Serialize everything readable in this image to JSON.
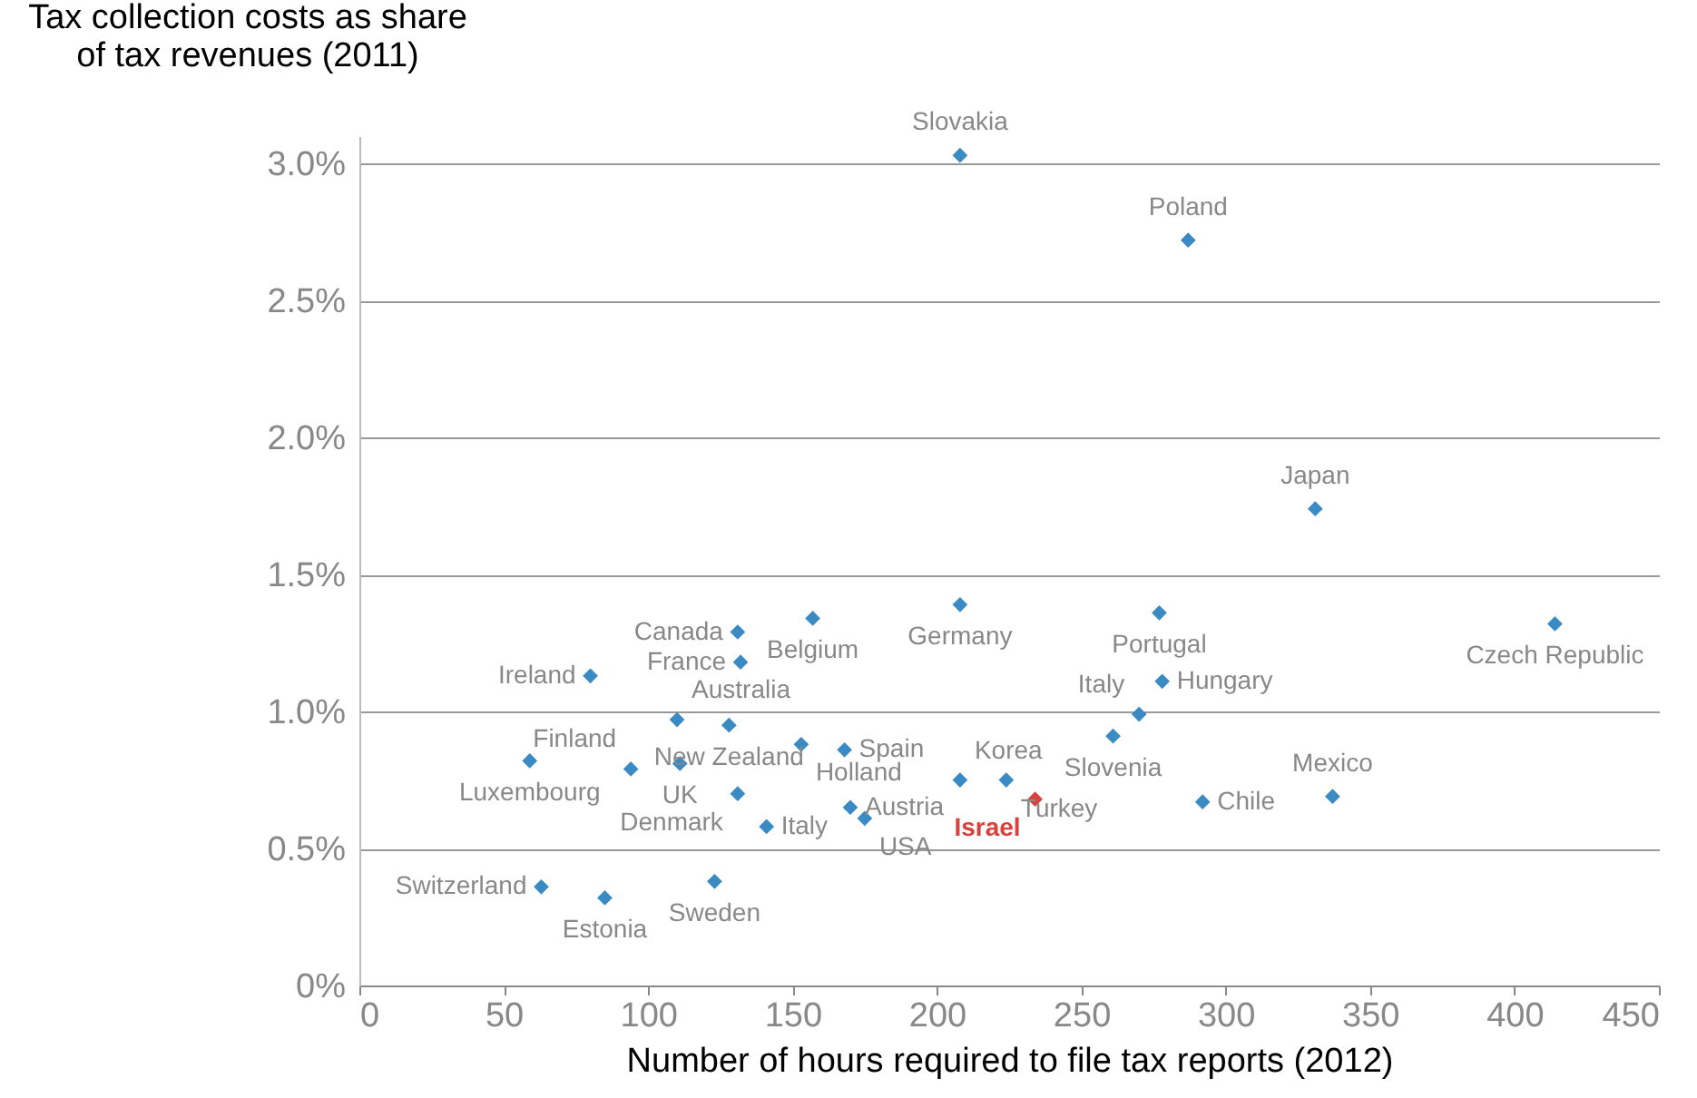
{
  "chart_data": {
    "type": "scatter",
    "xlabel": "Number of hours required to file tax reports (2012)",
    "ylabel": "Tax collection costs as share\nof tax revenues (2011)",
    "xlim": [
      0,
      450
    ],
    "xticks": [
      0,
      50,
      100,
      150,
      200,
      250,
      300,
      350,
      400,
      450
    ],
    "ylim": [
      0,
      3.1
    ],
    "yticks": [
      {
        "value": 0,
        "label": "0%"
      },
      {
        "value": 0.5,
        "label": "0.5%"
      },
      {
        "value": 1.0,
        "label": "1.0%"
      },
      {
        "value": 1.5,
        "label": "1.5%"
      },
      {
        "value": 2.0,
        "label": "2.0%"
      },
      {
        "value": 2.5,
        "label": "2.5%"
      },
      {
        "value": 3.0,
        "label": "3.0%"
      }
    ],
    "grid": "y",
    "marker": "diamond",
    "series": [
      {
        "color": "#3a8ac4",
        "x": [
          208,
          287,
          331,
          414,
          277,
          208,
          157,
          131,
          132,
          278,
          80,
          270,
          261,
          110,
          128,
          111,
          168,
          153,
          59,
          94,
          131,
          141,
          170,
          175,
          208,
          224,
          292,
          337,
          63,
          85,
          123
        ],
        "values": [
          3.03,
          2.72,
          1.74,
          1.32,
          1.36,
          1.39,
          1.34,
          1.29,
          1.18,
          1.11,
          1.13,
          0.99,
          0.91,
          0.97,
          0.95,
          0.81,
          0.86,
          0.88,
          0.82,
          0.79,
          0.7,
          0.58,
          0.65,
          0.61,
          0.75,
          0.75,
          0.67,
          0.69,
          0.36,
          0.32,
          0.38
        ]
      },
      {
        "color": "#d9413c",
        "x": [
          234
        ],
        "values": [
          0.68
        ]
      }
    ],
    "annotations": [
      {
        "text": "Slovakia",
        "x": 208,
        "y": 3.03
      },
      {
        "text": "Poland",
        "x": 287,
        "y": 2.72
      },
      {
        "text": "Japan",
        "x": 331,
        "y": 1.74
      },
      {
        "text": "Czech Republic",
        "x": 414,
        "y": 1.32
      },
      {
        "text": "Portugal",
        "x": 277,
        "y": 1.36
      },
      {
        "text": "Germany",
        "x": 208,
        "y": 1.39
      },
      {
        "text": "Belgium",
        "x": 157,
        "y": 1.34
      },
      {
        "text": "Canada",
        "x": 131,
        "y": 1.29
      },
      {
        "text": "France",
        "x": 132,
        "y": 1.18
      },
      {
        "text": "Hungary",
        "x": 278,
        "y": 1.11
      },
      {
        "text": "Ireland",
        "x": 80,
        "y": 1.13
      },
      {
        "text": "Italy",
        "x": 270,
        "y": 0.99
      },
      {
        "text": "Slovenia",
        "x": 261,
        "y": 0.91
      },
      {
        "text": "Australia",
        "x": 110,
        "y": 0.97
      },
      {
        "text": "New Zealand",
        "x": 128,
        "y": 0.95
      },
      {
        "text": "UK",
        "x": 111,
        "y": 0.81
      },
      {
        "text": "Spain",
        "x": 168,
        "y": 0.86
      },
      {
        "text": "Holland",
        "x": 153,
        "y": 0.88
      },
      {
        "text": "Luxembourg",
        "x": 59,
        "y": 0.82
      },
      {
        "text": "Finland",
        "x": 94,
        "y": 0.79
      },
      {
        "text": "Denmark",
        "x": 131,
        "y": 0.7
      },
      {
        "text": "Italy",
        "x": 141,
        "y": 0.58
      },
      {
        "text": "Austria",
        "x": 170,
        "y": 0.65
      },
      {
        "text": "USA",
        "x": 175,
        "y": 0.61
      },
      {
        "text": "Korea",
        "x": 208,
        "y": 0.75
      },
      {
        "text": "Turkey",
        "x": 224,
        "y": 0.75
      },
      {
        "text": "Chile",
        "x": 292,
        "y": 0.67
      },
      {
        "text": "Mexico",
        "x": 337,
        "y": 0.69
      },
      {
        "text": "Switzerland",
        "x": 63,
        "y": 0.36
      },
      {
        "text": "Estonia",
        "x": 85,
        "y": 0.32
      },
      {
        "text": "Sweden",
        "x": 123,
        "y": 0.38
      },
      {
        "text": "Israel",
        "x": 234,
        "y": 0.68
      }
    ]
  }
}
